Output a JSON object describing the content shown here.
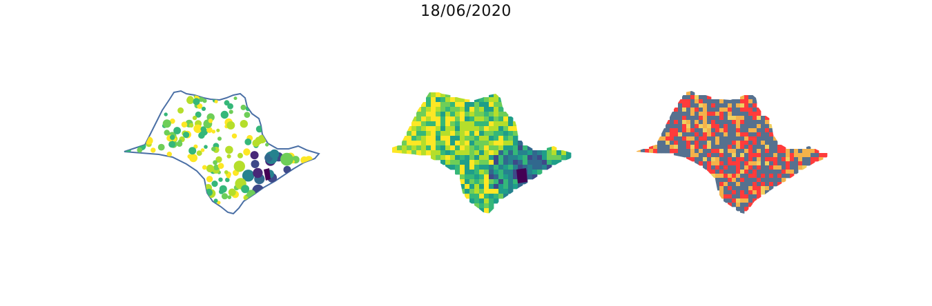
{
  "title": "18/06/2020",
  "maps": [
    {
      "name": "bubble-map",
      "kind": "proportional-symbols",
      "outline_color": "#4a6fa5"
    },
    {
      "name": "choropleth-map",
      "kind": "continuous-choropleth",
      "palette": [
        "#fde725",
        "#b5de2b",
        "#6ece58",
        "#35b779",
        "#1f9e89",
        "#26828e",
        "#31688e",
        "#3e4989",
        "#482878",
        "#440154"
      ]
    },
    {
      "name": "categorical-map",
      "kind": "categorical-choropleth",
      "palette": [
        "#56718f",
        "#ff3b3b",
        "#f4b24a",
        "#f0d060"
      ]
    }
  ]
}
